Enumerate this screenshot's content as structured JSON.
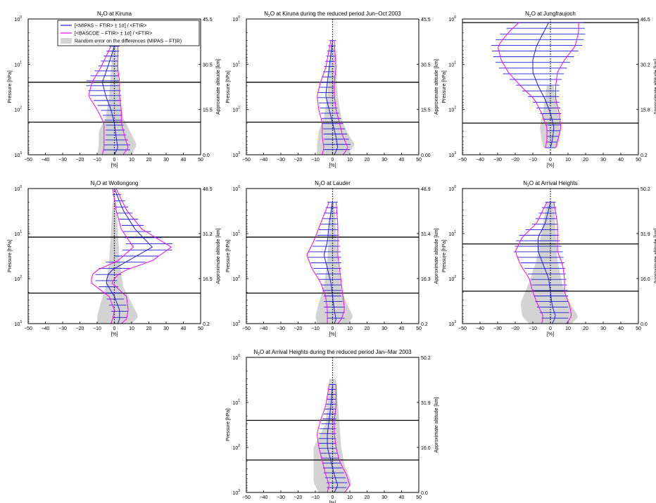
{
  "legend": {
    "mipas": "[<MIPAS − FTIR> ± 1σ] / <FTIR>",
    "bascoe": "[<BASCOE − FTIR> ± 1σ] / <FTIR>",
    "random": "Random error on the differences (MIPAS − FTIR)",
    "placement": "top"
  },
  "colors": {
    "mipas": "#1f1fd6",
    "bascoe": "#ff00ff",
    "random": "#d3d3d3",
    "axis": "#000000"
  },
  "axes": {
    "xlabel": "[%]",
    "ylabel": "Pressure [hPa]",
    "y2label": "Approximate altitude [km]",
    "xticks": [
      "−50",
      "−40",
      "−30",
      "−20",
      "−10",
      "0",
      "10",
      "20",
      "30",
      "40",
      "50"
    ],
    "ytick_base": "10",
    "ytick_exps": [
      "0",
      "1",
      "2",
      "3"
    ]
  },
  "chart_data": [
    {
      "type": "line",
      "title_main": "N",
      "title_sub": "2",
      "title_rest": "O at Kiruna",
      "xlim": [
        -50,
        50
      ],
      "ylim": [
        1000,
        1
      ],
      "y_scale": "log",
      "alt_labels": [
        "45.5",
        "30.5",
        "15.5",
        "0.0"
      ],
      "hlines": [
        25,
        190
      ],
      "mipas": {
        "p": [
          4,
          12,
          25,
          50,
          100,
          200,
          400,
          700,
          1000
        ],
        "mean": [
          0,
          -4,
          -7,
          -5,
          -2,
          0,
          1,
          2,
          0
        ],
        "err": [
          3,
          6,
          10,
          9,
          6,
          5,
          6,
          8,
          7
        ]
      },
      "bascoe": {
        "p": [
          4,
          12,
          25,
          50,
          100,
          200,
          400,
          700,
          1000
        ],
        "mean": [
          0,
          -3,
          -5,
          -6,
          -3,
          -1,
          0,
          1,
          -1
        ],
        "err": [
          2,
          5,
          8,
          9,
          7,
          5,
          6,
          7,
          6
        ]
      },
      "random": {
        "p": [
          4,
          50,
          150,
          300,
          600,
          1000
        ],
        "half": [
          1,
          3,
          5,
          9,
          11,
          10
        ],
        "center": [
          0,
          0,
          0,
          0,
          2,
          0
        ]
      }
    },
    {
      "type": "line",
      "title_main": "N",
      "title_sub": "2",
      "title_rest": "O at Kiruna during the reduced period Jun–Oct 2003",
      "xlim": [
        -50,
        50
      ],
      "ylim": [
        1000,
        1
      ],
      "y_scale": "log",
      "alt_labels": [
        "45.5",
        "30.5",
        "15.5",
        "0.00"
      ],
      "hlines": [
        25,
        190
      ],
      "mipas": {
        "p": [
          3,
          12,
          25,
          50,
          100,
          200,
          400,
          700,
          1000
        ],
        "mean": [
          0,
          -2,
          -3,
          -4,
          -2,
          0,
          2,
          3,
          1
        ],
        "err": [
          2,
          3,
          4,
          5,
          5,
          6,
          7,
          8,
          6
        ]
      },
      "bascoe": {
        "p": [
          3,
          12,
          25,
          50,
          100,
          200,
          400,
          700,
          1000
        ],
        "mean": [
          0,
          -1,
          -3,
          -4,
          -3,
          -1,
          0,
          2,
          0
        ],
        "err": [
          1,
          3,
          4,
          5,
          5,
          5,
          6,
          7,
          6
        ]
      },
      "random": {
        "p": [
          4,
          50,
          150,
          300,
          600,
          1000
        ],
        "half": [
          1,
          3,
          5,
          8,
          11,
          9
        ],
        "center": [
          0,
          0,
          0,
          0,
          2,
          0
        ]
      }
    },
    {
      "type": "line",
      "title_main": "N",
      "title_sub": "2",
      "title_rest": "O at Jungfraujoch",
      "xlim": [
        -50,
        50
      ],
      "ylim": [
        1000,
        1
      ],
      "y_scale": "log",
      "alt_labels": [
        "46.5",
        "30.2",
        "15.8",
        "0.2"
      ],
      "hlines": [
        1.2,
        200
      ],
      "mipas": {
        "p": [
          1.2,
          2,
          4,
          8,
          15,
          30,
          60,
          120,
          250,
          500,
          700
        ],
        "mean": [
          -1,
          -4,
          -8,
          -10,
          -10,
          -7,
          -3,
          0,
          2,
          1,
          0
        ],
        "err": [
          20,
          24,
          26,
          22,
          18,
          12,
          8,
          6,
          4,
          3,
          3
        ]
      },
      "bascoe": {
        "p": [
          1.2,
          2,
          4,
          8,
          15,
          30,
          60,
          120,
          250,
          500,
          700
        ],
        "mean": [
          -1,
          -4,
          -8,
          -10,
          -10,
          -7,
          -3,
          0,
          2,
          1,
          0
        ],
        "err": [
          17,
          20,
          22,
          18,
          14,
          10,
          6,
          5,
          4,
          3,
          3
        ]
      },
      "random": {
        "p": [
          30,
          100,
          250,
          500,
          700
        ],
        "half": [
          2,
          4,
          6,
          5,
          4
        ],
        "center": [
          0,
          0,
          0,
          0,
          0
        ]
      }
    },
    {
      "type": "line",
      "title_main": "N",
      "title_sub": "2",
      "title_rest": "O at Wollongong",
      "xlim": [
        -50,
        50
      ],
      "ylim": [
        1000,
        1
      ],
      "y_scale": "log",
      "alt_labels": [
        "48.5",
        "31.2",
        "16.5",
        "0.2"
      ],
      "hlines": [
        12,
        210
      ],
      "mipas": {
        "p": [
          1,
          3,
          8,
          20,
          40,
          70,
          120,
          250,
          500,
          800,
          1000
        ],
        "mean": [
          0,
          5,
          12,
          22,
          8,
          -3,
          -5,
          0,
          3,
          3,
          2
        ],
        "err": [
          2,
          4,
          7,
          15,
          12,
          8,
          6,
          5,
          5,
          4,
          3
        ]
      },
      "bascoe": {
        "p": [
          1,
          3,
          8,
          20,
          40,
          70,
          120,
          250,
          500,
          800,
          1000
        ],
        "mean": [
          0,
          4,
          10,
          22,
          12,
          -4,
          -8,
          2,
          4,
          3,
          1
        ],
        "err": [
          1,
          3,
          6,
          11,
          10,
          8,
          6,
          5,
          4,
          4,
          3
        ]
      },
      "random": {
        "p": [
          2,
          40,
          150,
          350,
          700,
          1000
        ],
        "half": [
          1,
          3,
          5,
          9,
          12,
          10
        ],
        "center": [
          0,
          0,
          0,
          1,
          2,
          0
        ]
      }
    },
    {
      "type": "line",
      "title_main": "N",
      "title_sub": "2",
      "title_rest": "O at Lauder",
      "xlim": [
        -50,
        50
      ],
      "ylim": [
        1000,
        1
      ],
      "y_scale": "log",
      "alt_labels": [
        "48.9",
        "31.4",
        "16.3",
        "0.2"
      ],
      "hlines": [
        12,
        210
      ],
      "mipas": {
        "p": [
          2,
          6,
          15,
          30,
          60,
          120,
          250,
          500,
          800,
          1000
        ],
        "mean": [
          0,
          -2,
          -3,
          -5,
          -3,
          -1,
          0,
          1,
          2,
          1
        ],
        "err": [
          3,
          5,
          7,
          10,
          8,
          6,
          5,
          6,
          5,
          4
        ]
      },
      "bascoe": {
        "p": [
          2,
          6,
          15,
          30,
          60,
          120,
          250,
          500,
          800,
          1000
        ],
        "mean": [
          0,
          -2,
          -4,
          -6,
          -4,
          -1,
          1,
          2,
          1,
          0
        ],
        "err": [
          2,
          5,
          7,
          9,
          8,
          6,
          5,
          5,
          4,
          3
        ]
      },
      "random": {
        "p": [
          2,
          40,
          150,
          350,
          700,
          1000
        ],
        "half": [
          1,
          3,
          5,
          8,
          11,
          9
        ],
        "center": [
          0,
          0,
          0,
          0,
          1,
          0
        ]
      }
    },
    {
      "type": "line",
      "title_main": "N",
      "title_sub": "2",
      "title_rest": "O at Arrival Heights",
      "xlim": [
        -50,
        50
      ],
      "ylim": [
        1000,
        1
      ],
      "y_scale": "log",
      "alt_labels": [
        "50.2",
        "31.9",
        "16.0",
        "0.0"
      ],
      "hlines": [
        17,
        190
      ],
      "mipas": {
        "p": [
          2,
          6,
          12,
          25,
          50,
          100,
          200,
          400,
          700,
          1000
        ],
        "mean": [
          0,
          -3,
          -7,
          -7,
          -4,
          -1,
          0,
          1,
          3,
          1
        ],
        "err": [
          3,
          7,
          12,
          14,
          12,
          10,
          10,
          9,
          8,
          6
        ]
      },
      "bascoe": {
        "p": [
          2,
          6,
          12,
          25,
          50,
          100,
          200,
          400,
          700,
          1000
        ],
        "mean": [
          0,
          -2,
          -6,
          -8,
          -5,
          -2,
          -1,
          2,
          4,
          2
        ],
        "err": [
          2,
          6,
          10,
          12,
          12,
          10,
          9,
          9,
          8,
          7
        ]
      },
      "random": {
        "p": [
          2,
          40,
          150,
          350,
          700,
          1000
        ],
        "half": [
          2,
          6,
          10,
          14,
          16,
          12
        ],
        "center": [
          0,
          -2,
          -3,
          -3,
          0,
          0
        ]
      }
    },
    {
      "type": "line",
      "title_main": "N",
      "title_sub": "2",
      "title_rest": "O at Arrival Heights during the reduced period Jan–Mar 2003",
      "xlim": [
        -50,
        50
      ],
      "ylim": [
        1000,
        1
      ],
      "y_scale": "log",
      "alt_labels": [
        "50.2",
        "31.9",
        "16.0",
        "0.0"
      ],
      "hlines": [
        25,
        190
      ],
      "mipas": {
        "p": [
          4,
          12,
          25,
          50,
          100,
          200,
          400,
          700,
          1000
        ],
        "mean": [
          0,
          -1,
          -2,
          -3,
          -3,
          -1,
          1,
          3,
          1
        ],
        "err": [
          2,
          3,
          4,
          5,
          5,
          5,
          6,
          6,
          5
        ]
      },
      "bascoe": {
        "p": [
          4,
          12,
          25,
          50,
          100,
          200,
          400,
          700,
          1000
        ],
        "mean": [
          0,
          -1,
          -3,
          -4,
          -3,
          -1,
          2,
          4,
          2
        ],
        "err": [
          2,
          3,
          4,
          5,
          5,
          5,
          6,
          6,
          5
        ]
      },
      "random": {
        "p": [
          3,
          30,
          100,
          250,
          600,
          1000
        ],
        "half": [
          2,
          4,
          8,
          9,
          11,
          8
        ],
        "center": [
          0,
          0,
          -3,
          -2,
          0,
          0
        ]
      }
    }
  ]
}
